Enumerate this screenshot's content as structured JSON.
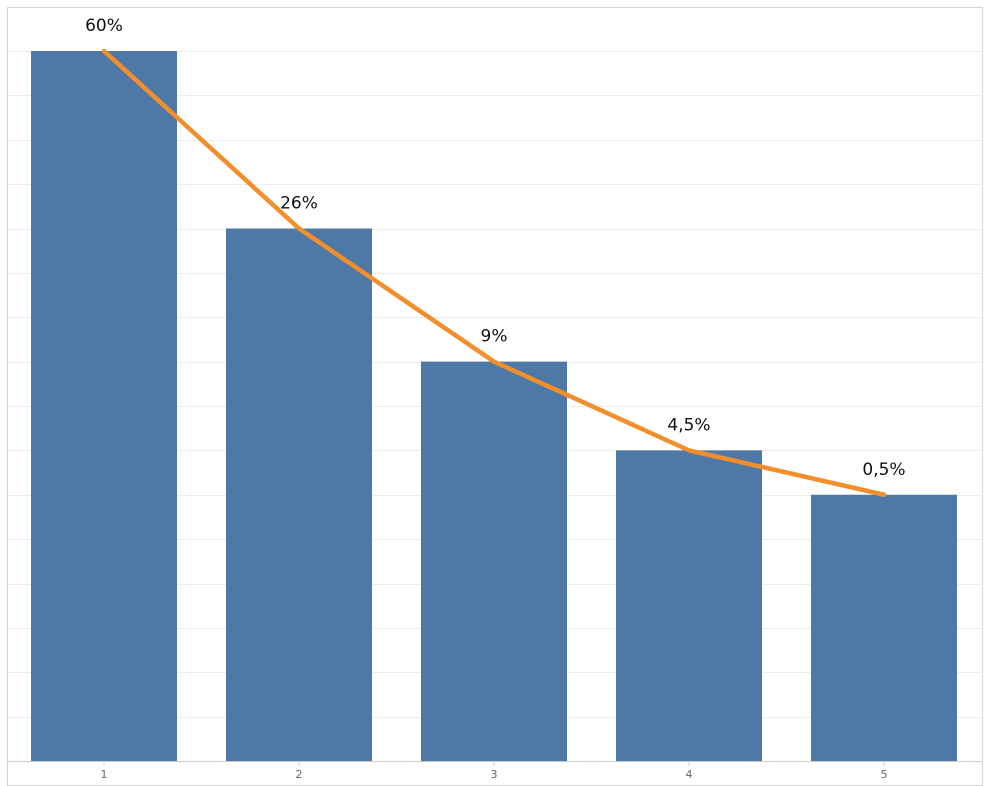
{
  "chart_data": {
    "type": "bar",
    "categories": [
      "1",
      "2",
      "3",
      "4",
      "5"
    ],
    "values": [
      16,
      12,
      9,
      7,
      6
    ],
    "line": {
      "values": [
        16,
        12,
        9,
        7,
        6
      ],
      "labels": [
        "60%",
        "26%",
        "9%",
        "4,5%",
        "0,5%"
      ]
    },
    "title": "",
    "xlabel": "",
    "ylabel": "",
    "ylim": [
      0,
      16
    ],
    "grid": true,
    "legend": "none"
  },
  "colors": {
    "bar": "#4e79a7",
    "line": "#f28e2b",
    "grid": "#ececec",
    "axis": "#cccccc",
    "frame": "#d4d4d4"
  }
}
